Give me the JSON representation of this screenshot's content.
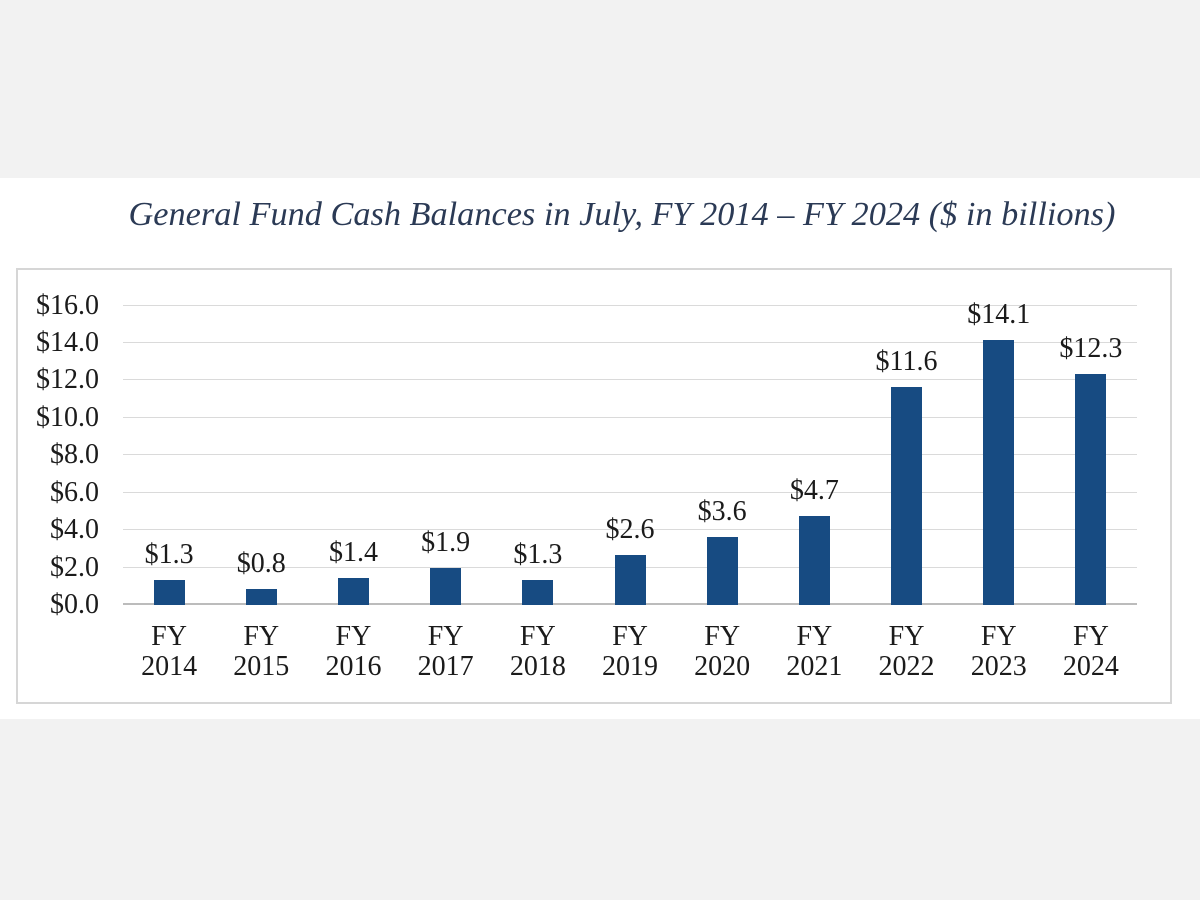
{
  "page": {
    "background_color": "#f2f2f2",
    "document_background_color": "#ffffff"
  },
  "chart_data": {
    "type": "bar",
    "title": "General Fund Cash Balances in July, FY 2014 – FY 2024 ($ in billions)",
    "xlabel": "",
    "ylabel": "",
    "categories": [
      "FY 2014",
      "FY 2015",
      "FY 2016",
      "FY 2017",
      "FY 2018",
      "FY 2019",
      "FY 2020",
      "FY 2021",
      "FY 2022",
      "FY 2023",
      "FY 2024"
    ],
    "values": [
      1.3,
      0.8,
      1.4,
      1.9,
      1.3,
      2.6,
      3.6,
      4.7,
      11.6,
      14.1,
      12.3
    ],
    "data_labels": [
      "$1.3",
      "$0.8",
      "$1.4",
      "$1.9",
      "$1.3",
      "$2.6",
      "$3.6",
      "$4.7",
      "$11.6",
      "$14.1",
      "$12.3"
    ],
    "y_ticks": [
      "$16.0",
      "$14.0",
      "$12.0",
      "$10.0",
      "$8.0",
      "$6.0",
      "$4.0",
      "$2.0",
      "$0.0"
    ],
    "ylim": [
      0,
      16
    ],
    "grid": true,
    "legend": false,
    "colors": {
      "bar": "#174b82",
      "title_text": "#2b3a55",
      "axis_text": "#1b1b1b",
      "gridline": "#dadada",
      "axis_line": "#bcbcbc",
      "frame_border": "#d6d6d6"
    }
  }
}
